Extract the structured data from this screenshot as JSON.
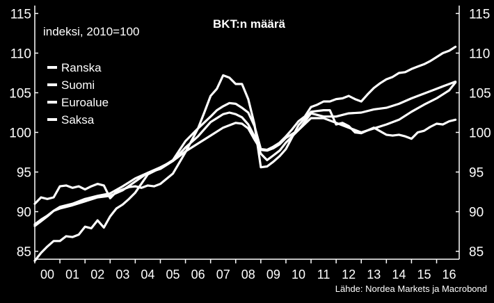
{
  "chart_data": {
    "type": "line",
    "title": "BKT:n määrä",
    "subtitle": "indeksi, 2010=100",
    "source": "Lähde: Nordea Markets ja Macrobond",
    "x_tick_labels": [
      "00",
      "01",
      "02",
      "03",
      "04",
      "05",
      "06",
      "07",
      "08",
      "09",
      "10",
      "11",
      "12",
      "13",
      "14",
      "15",
      "16"
    ],
    "x_range": [
      2000,
      2016.9
    ],
    "ylim": [
      84,
      116
    ],
    "y_ticks": [
      85,
      90,
      95,
      100,
      105,
      110,
      115
    ],
    "grid": false,
    "legend_position": "top-left",
    "colors": {
      "background": "#000000",
      "line": "#ffffff"
    },
    "series": [
      {
        "name": "Ranska",
        "x": [
          2000,
          2000.25,
          2000.5,
          2000.75,
          2001,
          2001.25,
          2001.5,
          2001.75,
          2002,
          2002.5,
          2003,
          2003.5,
          2004,
          2004.5,
          2005,
          2005.5,
          2006,
          2006.5,
          2007,
          2007.5,
          2008,
          2008.25,
          2008.5,
          2008.75,
          2009,
          2009.25,
          2009.5,
          2009.75,
          2010,
          2010.5,
          2011,
          2011.5,
          2012,
          2012.5,
          2013,
          2013.5,
          2014,
          2014.5,
          2015,
          2015.5,
          2016,
          2016.25,
          2016.5,
          2016.75
        ],
        "y": [
          88.2,
          88.8,
          89.4,
          90.1,
          90.6,
          90.8,
          91.0,
          91.3,
          91.6,
          92.0,
          92.3,
          93.2,
          94.2,
          94.9,
          95.6,
          96.4,
          97.6,
          98.6,
          99.6,
          100.6,
          101.2,
          101.1,
          100.5,
          99.1,
          97.8,
          97.7,
          98.0,
          98.5,
          99.3,
          100.3,
          102.4,
          102.0,
          102.0,
          102.4,
          102.5,
          102.9,
          103.1,
          103.6,
          104.3,
          104.9,
          105.5,
          105.8,
          106.1,
          106.4
        ]
      },
      {
        "name": "Suomi",
        "x": [
          2000,
          2000.25,
          2000.5,
          2000.75,
          2001,
          2001.25,
          2001.5,
          2001.75,
          2002,
          2002.25,
          2002.5,
          2002.75,
          2003,
          2003.25,
          2003.5,
          2003.75,
          2004,
          2004.25,
          2004.5,
          2004.75,
          2005,
          2005.5,
          2006,
          2006.25,
          2006.5,
          2006.75,
          2007,
          2007.25,
          2007.5,
          2007.75,
          2008,
          2008.25,
          2008.5,
          2008.75,
          2009,
          2009.25,
          2009.5,
          2009.75,
          2010,
          2010.5,
          2011,
          2011.25,
          2011.5,
          2011.75,
          2012,
          2012.25,
          2012.5,
          2012.75,
          2013,
          2013.5,
          2014,
          2014.25,
          2014.5,
          2014.75,
          2015,
          2015.25,
          2015.5,
          2015.75,
          2016,
          2016.25,
          2016.5,
          2016.75
        ],
        "y": [
          91.0,
          91.8,
          91.6,
          91.8,
          93.2,
          93.3,
          93.0,
          93.2,
          92.8,
          93.2,
          93.5,
          93.3,
          91.7,
          92.5,
          92.8,
          93.1,
          93.2,
          93.0,
          93.3,
          93.2,
          93.5,
          94.8,
          97.5,
          99.0,
          100.5,
          102.5,
          104.6,
          105.5,
          107.2,
          106.9,
          106.1,
          106.1,
          104.2,
          101.0,
          95.6,
          95.7,
          96.3,
          97.0,
          97.9,
          100.9,
          102.6,
          102.7,
          102.8,
          102.8,
          101.0,
          101.2,
          100.8,
          100.0,
          99.9,
          100.6,
          99.7,
          99.6,
          99.7,
          99.5,
          99.2,
          100.0,
          100.2,
          100.7,
          101.1,
          101.0,
          101.4,
          101.6
        ]
      },
      {
        "name": "Euroalue",
        "x": [
          2000,
          2000.25,
          2000.5,
          2000.75,
          2001,
          2001.5,
          2002,
          2002.5,
          2003,
          2003.5,
          2004,
          2004.5,
          2005,
          2005.5,
          2006,
          2006.5,
          2007,
          2007.25,
          2007.5,
          2007.75,
          2008,
          2008.25,
          2008.5,
          2008.75,
          2009,
          2009.25,
          2009.5,
          2009.75,
          2010,
          2010.5,
          2011,
          2011.5,
          2012,
          2012.5,
          2013,
          2013.5,
          2014,
          2014.5,
          2015,
          2015.5,
          2016,
          2016.25,
          2016.5,
          2016.75
        ],
        "y": [
          88.4,
          89.0,
          89.5,
          90.1,
          90.4,
          90.8,
          91.3,
          91.8,
          92.0,
          92.7,
          93.8,
          94.9,
          95.4,
          96.4,
          98.1,
          99.5,
          101.3,
          101.8,
          102.3,
          102.5,
          102.3,
          101.9,
          101.0,
          99.5,
          97.3,
          96.5,
          97.1,
          97.7,
          98.7,
          100.3,
          101.8,
          101.8,
          101.2,
          100.6,
          100.0,
          100.5,
          101.0,
          101.6,
          102.6,
          103.5,
          104.3,
          104.8,
          105.3,
          106.3
        ]
      },
      {
        "name": "Saksa",
        "x": [
          2000,
          2000.25,
          2000.5,
          2000.75,
          2001,
          2001.25,
          2001.5,
          2001.75,
          2002,
          2002.25,
          2002.5,
          2002.75,
          2003,
          2003.25,
          2003.5,
          2003.75,
          2004,
          2004.5,
          2005,
          2005.5,
          2006,
          2006.5,
          2007,
          2007.25,
          2007.5,
          2007.75,
          2008,
          2008.25,
          2008.5,
          2008.75,
          2009,
          2009.25,
          2009.5,
          2009.75,
          2010,
          2010.25,
          2010.5,
          2010.75,
          2011,
          2011.25,
          2011.5,
          2011.75,
          2012,
          2012.25,
          2012.5,
          2012.75,
          2013,
          2013.25,
          2013.5,
          2013.75,
          2014,
          2014.25,
          2014.5,
          2014.75,
          2015,
          2015.25,
          2015.5,
          2015.75,
          2016,
          2016.25,
          2016.5,
          2016.75
        ],
        "y": [
          83.8,
          84.8,
          85.6,
          86.3,
          86.3,
          86.9,
          86.8,
          87.1,
          88.1,
          87.9,
          88.9,
          88.0,
          89.4,
          90.4,
          90.9,
          91.6,
          92.4,
          94.7,
          95.5,
          96.5,
          98.9,
          100.5,
          102.0,
          102.8,
          103.3,
          103.7,
          103.6,
          103.1,
          102.5,
          100.8,
          97.9,
          97.8,
          98.2,
          98.7,
          99.5,
          100.4,
          101.4,
          102.0,
          103.2,
          103.5,
          103.9,
          103.9,
          104.2,
          104.3,
          104.6,
          104.2,
          103.9,
          104.8,
          105.6,
          106.2,
          106.7,
          107.0,
          107.5,
          107.6,
          108.0,
          108.3,
          108.6,
          109.0,
          109.5,
          110.0,
          110.3,
          110.8
        ]
      }
    ]
  }
}
